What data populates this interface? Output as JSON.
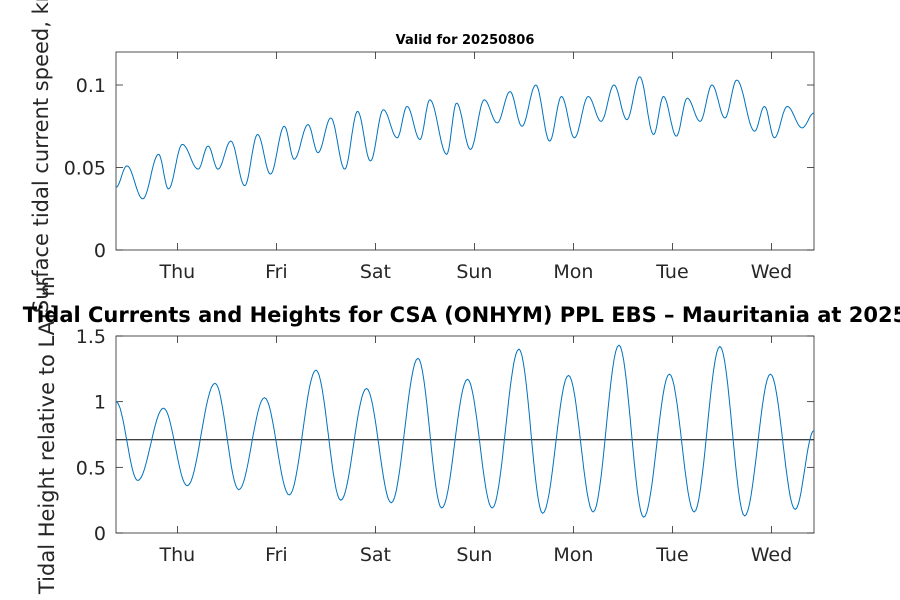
{
  "figure_title": "Tidal Currents and Heights for CSA (ONHYM) PPL EBS  – Mauritania at 2025",
  "colors": {
    "line": "#0072BD",
    "reference": "#000000",
    "axis": "#262626"
  },
  "chart_data": [
    {
      "type": "line",
      "title": "Valid for 20250806",
      "ylabel": "Surface tidal current speed, kn",
      "ylim": [
        0,
        0.12
      ],
      "yticks": [
        0,
        0.05,
        0.1
      ],
      "ytick_labels": [
        "0",
        "0.05",
        "0.1"
      ],
      "xlim": [
        0,
        7.05
      ],
      "xticks": [
        0.62,
        1.62,
        2.62,
        3.62,
        4.62,
        5.62,
        6.62
      ],
      "xtick_labels": [
        "Thu",
        "Fri",
        "Sat",
        "Sun",
        "Mon",
        "Tue",
        "Wed"
      ],
      "grid": false,
      "series": [
        {
          "values": [
            [
              0,
              0.038
            ],
            [
              0.11,
              0.051
            ],
            [
              0.27,
              0.031
            ],
            [
              0.43,
              0.058
            ],
            [
              0.53,
              0.037
            ],
            [
              0.67,
              0.064
            ],
            [
              0.83,
              0.049
            ],
            [
              0.93,
              0.063
            ],
            [
              1.03,
              0.049
            ],
            [
              1.16,
              0.066
            ],
            [
              1.3,
              0.039
            ],
            [
              1.43,
              0.07
            ],
            [
              1.56,
              0.046
            ],
            [
              1.7,
              0.075
            ],
            [
              1.8,
              0.055
            ],
            [
              1.94,
              0.076
            ],
            [
              2.04,
              0.059
            ],
            [
              2.17,
              0.08
            ],
            [
              2.31,
              0.049
            ],
            [
              2.44,
              0.084
            ],
            [
              2.57,
              0.054
            ],
            [
              2.7,
              0.085
            ],
            [
              2.84,
              0.068
            ],
            [
              2.94,
              0.087
            ],
            [
              3.07,
              0.067
            ],
            [
              3.17,
              0.091
            ],
            [
              3.34,
              0.058
            ],
            [
              3.44,
              0.089
            ],
            [
              3.58,
              0.061
            ],
            [
              3.72,
              0.091
            ],
            [
              3.85,
              0.077
            ],
            [
              3.98,
              0.096
            ],
            [
              4.1,
              0.075
            ],
            [
              4.24,
              0.1
            ],
            [
              4.38,
              0.066
            ],
            [
              4.5,
              0.093
            ],
            [
              4.63,
              0.068
            ],
            [
              4.77,
              0.093
            ],
            [
              4.9,
              0.078
            ],
            [
              5.03,
              0.1
            ],
            [
              5.16,
              0.079
            ],
            [
              5.29,
              0.105
            ],
            [
              5.43,
              0.07
            ],
            [
              5.53,
              0.093
            ],
            [
              5.66,
              0.069
            ],
            [
              5.77,
              0.092
            ],
            [
              5.9,
              0.078
            ],
            [
              6.02,
              0.1
            ],
            [
              6.15,
              0.08
            ],
            [
              6.27,
              0.103
            ],
            [
              6.45,
              0.072
            ],
            [
              6.55,
              0.087
            ],
            [
              6.65,
              0.068
            ],
            [
              6.78,
              0.087
            ],
            [
              6.93,
              0.074
            ],
            [
              7.05,
              0.083
            ]
          ]
        }
      ]
    },
    {
      "type": "line",
      "title": "",
      "ylabel": "Tidal Height relative to LAT, m",
      "ylim": [
        0,
        1.5
      ],
      "yticks": [
        0,
        0.5,
        1,
        1.5
      ],
      "ytick_labels": [
        "0",
        "0.5",
        "1",
        "1.5"
      ],
      "xlim": [
        0,
        7.05
      ],
      "xticks": [
        0.62,
        1.62,
        2.62,
        3.62,
        4.62,
        5.62,
        6.62
      ],
      "xtick_labels": [
        "Thu",
        "Fri",
        "Sat",
        "Sun",
        "Mon",
        "Tue",
        "Wed"
      ],
      "grid": false,
      "reference_level": 0.71,
      "series": [
        {
          "values": [
            [
              0,
              1.0
            ],
            [
              0.22,
              0.4
            ],
            [
              0.48,
              0.95
            ],
            [
              0.72,
              0.36
            ],
            [
              1.0,
              1.14
            ],
            [
              1.24,
              0.33
            ],
            [
              1.5,
              1.03
            ],
            [
              1.75,
              0.29
            ],
            [
              2.02,
              1.24
            ],
            [
              2.27,
              0.25
            ],
            [
              2.53,
              1.1
            ],
            [
              2.78,
              0.23
            ],
            [
              3.05,
              1.33
            ],
            [
              3.29,
              0.19
            ],
            [
              3.55,
              1.17
            ],
            [
              3.8,
              0.19
            ],
            [
              4.07,
              1.4
            ],
            [
              4.31,
              0.15
            ],
            [
              4.57,
              1.2
            ],
            [
              4.82,
              0.16
            ],
            [
              5.08,
              1.43
            ],
            [
              5.33,
              0.12
            ],
            [
              5.59,
              1.21
            ],
            [
              5.84,
              0.16
            ],
            [
              6.1,
              1.42
            ],
            [
              6.35,
              0.13
            ],
            [
              6.61,
              1.21
            ],
            [
              6.86,
              0.18
            ],
            [
              7.05,
              0.78
            ]
          ]
        }
      ]
    }
  ]
}
